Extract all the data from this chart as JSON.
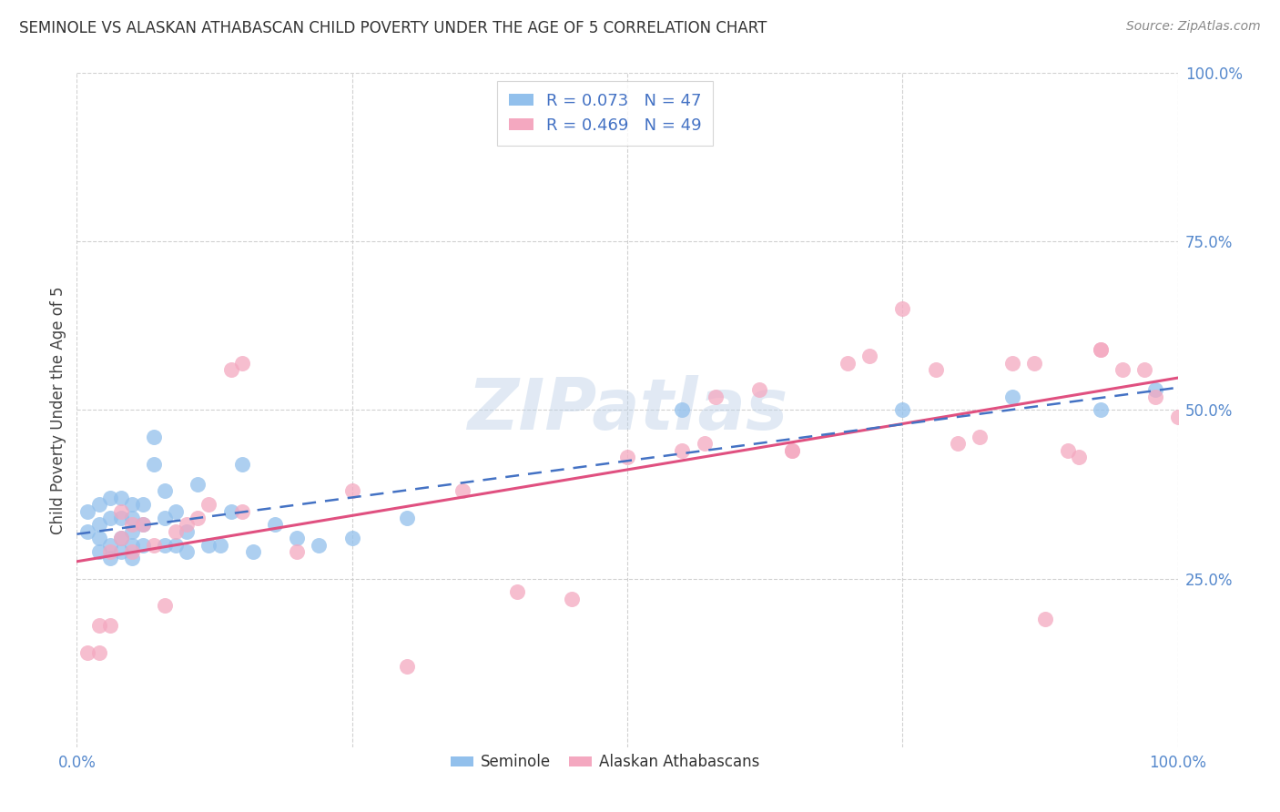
{
  "title": "SEMINOLE VS ALASKAN ATHABASCAN CHILD POVERTY UNDER THE AGE OF 5 CORRELATION CHART",
  "source": "Source: ZipAtlas.com",
  "ylabel": "Child Poverty Under the Age of 5",
  "xlim": [
    0.0,
    1.0
  ],
  "ylim": [
    0.0,
    1.0
  ],
  "seminole_color": "#92C0EC",
  "alaskan_color": "#F4A8C0",
  "seminole_line_color": "#4472C4",
  "alaskan_line_color": "#E05080",
  "seminole_R": 0.073,
  "seminole_N": 47,
  "alaskan_R": 0.469,
  "alaskan_N": 49,
  "legend_label_seminole": "Seminole",
  "legend_label_alaskan": "Alaskan Athabascans",
  "watermark": "ZIPatlas",
  "seminole_x": [
    0.01,
    0.01,
    0.02,
    0.02,
    0.02,
    0.02,
    0.03,
    0.03,
    0.03,
    0.03,
    0.04,
    0.04,
    0.04,
    0.04,
    0.05,
    0.05,
    0.05,
    0.05,
    0.05,
    0.06,
    0.06,
    0.06,
    0.07,
    0.07,
    0.08,
    0.08,
    0.08,
    0.09,
    0.09,
    0.1,
    0.1,
    0.11,
    0.12,
    0.13,
    0.14,
    0.15,
    0.16,
    0.18,
    0.2,
    0.22,
    0.25,
    0.3,
    0.55,
    0.75,
    0.85,
    0.93,
    0.98
  ],
  "seminole_y": [
    0.32,
    0.35,
    0.29,
    0.31,
    0.33,
    0.36,
    0.28,
    0.3,
    0.34,
    0.37,
    0.29,
    0.31,
    0.34,
    0.37,
    0.28,
    0.3,
    0.32,
    0.34,
    0.36,
    0.3,
    0.33,
    0.36,
    0.42,
    0.46,
    0.3,
    0.34,
    0.38,
    0.3,
    0.35,
    0.29,
    0.32,
    0.39,
    0.3,
    0.3,
    0.35,
    0.42,
    0.29,
    0.33,
    0.31,
    0.3,
    0.31,
    0.34,
    0.5,
    0.5,
    0.52,
    0.5,
    0.53
  ],
  "alaskan_x": [
    0.01,
    0.02,
    0.02,
    0.03,
    0.03,
    0.04,
    0.04,
    0.05,
    0.05,
    0.06,
    0.07,
    0.08,
    0.09,
    0.1,
    0.11,
    0.12,
    0.14,
    0.15,
    0.15,
    0.2,
    0.25,
    0.3,
    0.35,
    0.4,
    0.45,
    0.5,
    0.55,
    0.57,
    0.58,
    0.62,
    0.65,
    0.65,
    0.7,
    0.72,
    0.75,
    0.78,
    0.8,
    0.82,
    0.85,
    0.87,
    0.88,
    0.9,
    0.91,
    0.93,
    0.93,
    0.95,
    0.97,
    0.98,
    1.0
  ],
  "alaskan_y": [
    0.14,
    0.14,
    0.18,
    0.18,
    0.29,
    0.31,
    0.35,
    0.29,
    0.33,
    0.33,
    0.3,
    0.21,
    0.32,
    0.33,
    0.34,
    0.36,
    0.56,
    0.57,
    0.35,
    0.29,
    0.38,
    0.12,
    0.38,
    0.23,
    0.22,
    0.43,
    0.44,
    0.45,
    0.52,
    0.53,
    0.44,
    0.44,
    0.57,
    0.58,
    0.65,
    0.56,
    0.45,
    0.46,
    0.57,
    0.57,
    0.19,
    0.44,
    0.43,
    0.59,
    0.59,
    0.56,
    0.56,
    0.52,
    0.49
  ]
}
